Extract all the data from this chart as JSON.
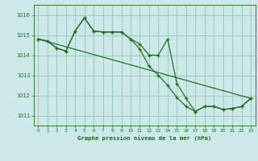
{
  "background_color": "#cce8e8",
  "grid_color": "#99ccbb",
  "line_color": "#1a6b1a",
  "title": "Graphe pression niveau de la mer (hPa)",
  "xlim": [
    -0.5,
    23.5
  ],
  "ylim": [
    1010.5,
    1016.5
  ],
  "yticks": [
    1011,
    1012,
    1013,
    1014,
    1015,
    1016
  ],
  "xticks": [
    0,
    1,
    2,
    3,
    4,
    5,
    6,
    7,
    8,
    9,
    10,
    11,
    12,
    13,
    14,
    15,
    16,
    17,
    18,
    19,
    20,
    21,
    22,
    23
  ],
  "series": [
    {
      "x": [
        0,
        1,
        2,
        3,
        4,
        5,
        6,
        7,
        8,
        9,
        10,
        11,
        12,
        13,
        14,
        15,
        16,
        17,
        18,
        19,
        20,
        21,
        22,
        23
      ],
      "y": [
        1014.8,
        1014.7,
        1014.35,
        1014.2,
        1015.2,
        1015.85,
        1015.2,
        1015.15,
        1015.15,
        1015.15,
        1014.8,
        1014.55,
        1014.0,
        1014.0,
        1014.8,
        1012.6,
        1011.85,
        1011.2,
        1011.45,
        1011.45,
        1011.3,
        1011.35,
        1011.45,
        1011.85
      ]
    },
    {
      "x": [
        0,
        1,
        2,
        3,
        4,
        5,
        6,
        7,
        8,
        9,
        10,
        11,
        12,
        13,
        14,
        15,
        16,
        17,
        18,
        19,
        20,
        21,
        22,
        23
      ],
      "y": [
        1014.8,
        1014.7,
        1014.35,
        1014.2,
        1015.2,
        1015.85,
        1015.2,
        1015.15,
        1015.15,
        1015.15,
        1014.8,
        1014.3,
        1013.45,
        1013.0,
        1012.5,
        1011.9,
        1011.45,
        1011.2,
        1011.45,
        1011.45,
        1011.3,
        1011.35,
        1011.45,
        1011.85
      ]
    },
    {
      "x": [
        0,
        23
      ],
      "y": [
        1014.8,
        1011.85
      ]
    }
  ]
}
